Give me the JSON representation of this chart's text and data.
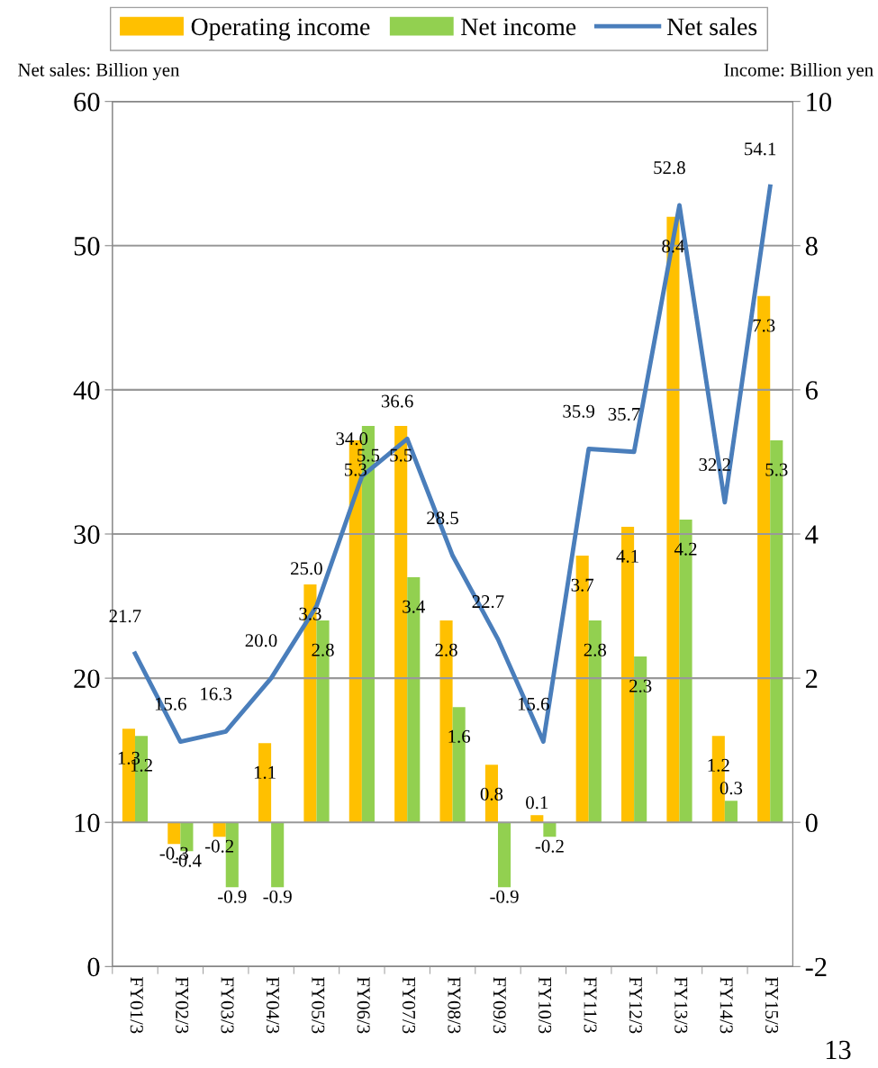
{
  "chart_data": {
    "type": "bar",
    "ylabel": "Net sales: Billion yen",
    "y2label": "Income: Billion yen",
    "categories": [
      "FY01/3",
      "FY02/3",
      "FY03/3",
      "FY04/3",
      "FY05/3",
      "FY06/3",
      "FY07/3",
      "FY08/3",
      "FY09/3",
      "FY10/3",
      "FY11/3",
      "FY12/3",
      "FY13/3",
      "FY14/3",
      "FY15/3"
    ],
    "series": [
      {
        "name": "Operating income",
        "axis": "y2",
        "color": "#ffc000",
        "values": [
          1.3,
          -0.3,
          -0.2,
          1.1,
          3.3,
          5.3,
          5.5,
          2.8,
          0.8,
          0.1,
          3.7,
          4.1,
          8.4,
          1.2,
          7.3
        ]
      },
      {
        "name": "Net income",
        "axis": "y2",
        "color": "#92d050",
        "values": [
          1.2,
          -0.4,
          -0.9,
          -0.9,
          2.8,
          5.5,
          3.4,
          1.6,
          -0.9,
          -0.2,
          2.8,
          2.3,
          4.2,
          0.3,
          5.3
        ]
      },
      {
        "name": "Net sales",
        "type": "line",
        "color": "#4a7ebb",
        "values": [
          21.7,
          15.6,
          16.3,
          20.0,
          25.0,
          34.0,
          36.6,
          28.5,
          22.7,
          15.6,
          35.9,
          35.7,
          52.8,
          32.2,
          54.1
        ],
        "value_labels": [
          "21.7",
          "15.6",
          "16.3",
          "20.0",
          "25.0",
          "34.0",
          "36.6",
          "28.5",
          "22.7",
          "15.6",
          "35.9",
          "35.7",
          "52.8",
          "32.2",
          "54.1"
        ]
      }
    ],
    "ylim": [
      0,
      60
    ],
    "yticks": [
      0,
      10,
      20,
      30,
      40,
      50,
      60
    ],
    "y2lim": [
      -2,
      10
    ],
    "y2ticks": [
      -2,
      0,
      2,
      4,
      6,
      8,
      10
    ],
    "data_labels": true,
    "grid": "y",
    "legend": "top",
    "marker": "none",
    "line_style": "solid",
    "annotations": [
      "13"
    ]
  }
}
